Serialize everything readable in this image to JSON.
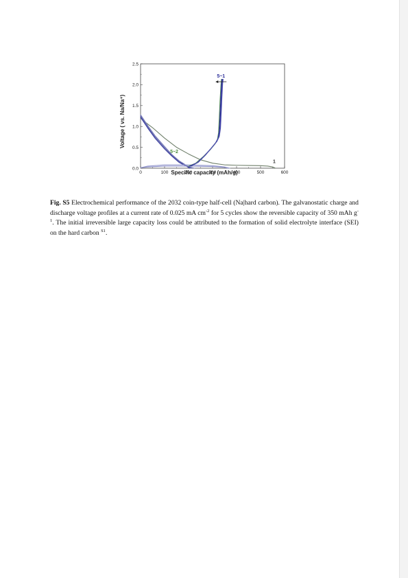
{
  "chart_data": {
    "type": "line",
    "xlabel": "Specific capacity (mAh/g)",
    "ylabel": "Voltage ( vs. Na/Na⁺)",
    "xlim": [
      0,
      600
    ],
    "ylim": [
      0,
      2.5
    ],
    "x_ticks": [
      "0",
      "100",
      "200",
      "300",
      "400",
      "500",
      "600"
    ],
    "y_ticks": [
      "0.0",
      "0.5",
      "1.0",
      "1.5",
      "2.0",
      "2.5"
    ],
    "grid": false,
    "series": [
      {
        "color": "#6f7f6a",
        "points": [
          [
            0,
            1.2
          ],
          [
            20,
            1.1
          ],
          [
            50,
            0.97
          ],
          [
            100,
            0.72
          ],
          [
            150,
            0.5
          ],
          [
            200,
            0.34
          ],
          [
            250,
            0.2
          ],
          [
            300,
            0.12
          ],
          [
            350,
            0.08
          ],
          [
            400,
            0.07
          ],
          [
            450,
            0.065
          ],
          [
            500,
            0.06
          ],
          [
            530,
            0.05
          ],
          [
            550,
            0.03
          ],
          [
            562,
            0.0
          ]
        ]
      },
      {
        "color": "#7a7fb8",
        "points": [
          [
            0,
            1.28
          ],
          [
            30,
            1.02
          ],
          [
            60,
            0.78
          ],
          [
            100,
            0.52
          ],
          [
            130,
            0.33
          ],
          [
            160,
            0.18
          ],
          [
            190,
            0.07
          ],
          [
            210,
            0.02
          ],
          [
            225,
            0.0
          ]
        ]
      },
      {
        "color": "#5a5ea8",
        "points": [
          [
            0,
            1.25
          ],
          [
            30,
            0.99
          ],
          [
            60,
            0.75
          ],
          [
            100,
            0.49
          ],
          [
            130,
            0.31
          ],
          [
            160,
            0.16
          ],
          [
            190,
            0.06
          ],
          [
            212,
            0.0
          ]
        ]
      },
      {
        "color": "#3c3fa0",
        "points": [
          [
            0,
            1.22
          ],
          [
            30,
            0.96
          ],
          [
            60,
            0.72
          ],
          [
            100,
            0.46
          ],
          [
            130,
            0.29
          ],
          [
            160,
            0.14
          ],
          [
            190,
            0.05
          ],
          [
            205,
            0.0
          ]
        ]
      },
      {
        "color": "#9a9ed0",
        "points": [
          [
            0,
            0.01
          ],
          [
            30,
            0.05
          ],
          [
            100,
            0.08
          ],
          [
            200,
            0.08
          ],
          [
            300,
            0.06
          ],
          [
            350,
            0.03
          ],
          [
            372,
            0.0
          ]
        ]
      },
      {
        "color": "#8c8fc8",
        "points": [
          [
            0,
            0.01
          ],
          [
            30,
            0.03
          ],
          [
            100,
            0.05
          ],
          [
            200,
            0.05
          ],
          [
            300,
            0.04
          ],
          [
            350,
            0.02
          ],
          [
            365,
            0.0
          ]
        ]
      },
      {
        "color": "#4f8a52",
        "points": [
          [
            200,
            0.05
          ],
          [
            230,
            0.12
          ],
          [
            260,
            0.27
          ],
          [
            290,
            0.44
          ],
          [
            310,
            0.58
          ],
          [
            320,
            0.68
          ],
          [
            325,
            0.85
          ],
          [
            328,
            1.2
          ],
          [
            331,
            1.6
          ],
          [
            335,
            2.0
          ],
          [
            337,
            2.13
          ]
        ]
      },
      {
        "color": "#3a3ca0",
        "points": [
          [
            205,
            0.05
          ],
          [
            235,
            0.13
          ],
          [
            265,
            0.29
          ],
          [
            293,
            0.47
          ],
          [
            313,
            0.61
          ],
          [
            323,
            0.72
          ],
          [
            328,
            0.9
          ],
          [
            331,
            1.25
          ],
          [
            334,
            1.65
          ],
          [
            337,
            2.0
          ],
          [
            339,
            2.13
          ]
        ]
      },
      {
        "color": "#1f2290",
        "points": [
          [
            210,
            0.05
          ],
          [
            240,
            0.14
          ],
          [
            268,
            0.3
          ],
          [
            296,
            0.49
          ],
          [
            316,
            0.63
          ],
          [
            326,
            0.74
          ],
          [
            331,
            0.92
          ],
          [
            334,
            1.28
          ],
          [
            337,
            1.68
          ],
          [
            340,
            2.02
          ],
          [
            342,
            2.13
          ]
        ]
      },
      {
        "color": "#5558b0",
        "points": [
          [
            212,
            0.05
          ],
          [
            242,
            0.15
          ],
          [
            270,
            0.31
          ],
          [
            298,
            0.5
          ],
          [
            318,
            0.64
          ],
          [
            328,
            0.76
          ],
          [
            333,
            0.95
          ],
          [
            336,
            1.3
          ],
          [
            339,
            1.7
          ],
          [
            342,
            2.03
          ],
          [
            344,
            2.13
          ]
        ]
      }
    ],
    "annotations": [
      {
        "text": "5~1",
        "x": 335,
        "y": 2.17,
        "color": "#2d2f9a"
      },
      {
        "text": "5~2",
        "x": 140,
        "y": 0.36,
        "color": "#4a8a3a"
      },
      {
        "text": "1",
        "x": 557,
        "y": 0.12,
        "color": "#333333"
      }
    ]
  },
  "caption": {
    "label": "Fig. S5",
    "text": "Electrochemical performance of the 2032 coin-type half-cell (Na|hard carbon). The galvanostatic charge and discharge voltage profiles at a current rate of 0.025 mA cm",
    "sup_1": "-2",
    "text_2": " for 5 cycles show the reversible capacity of 350 mAh g",
    "sup_2": "-1",
    "text_3": ". The initial irreversible large capacity loss could be attributed to the formation of solid electrolyte interface (SEI) on the hard carbon ",
    "sup_3": "S1",
    "text_4": "."
  }
}
